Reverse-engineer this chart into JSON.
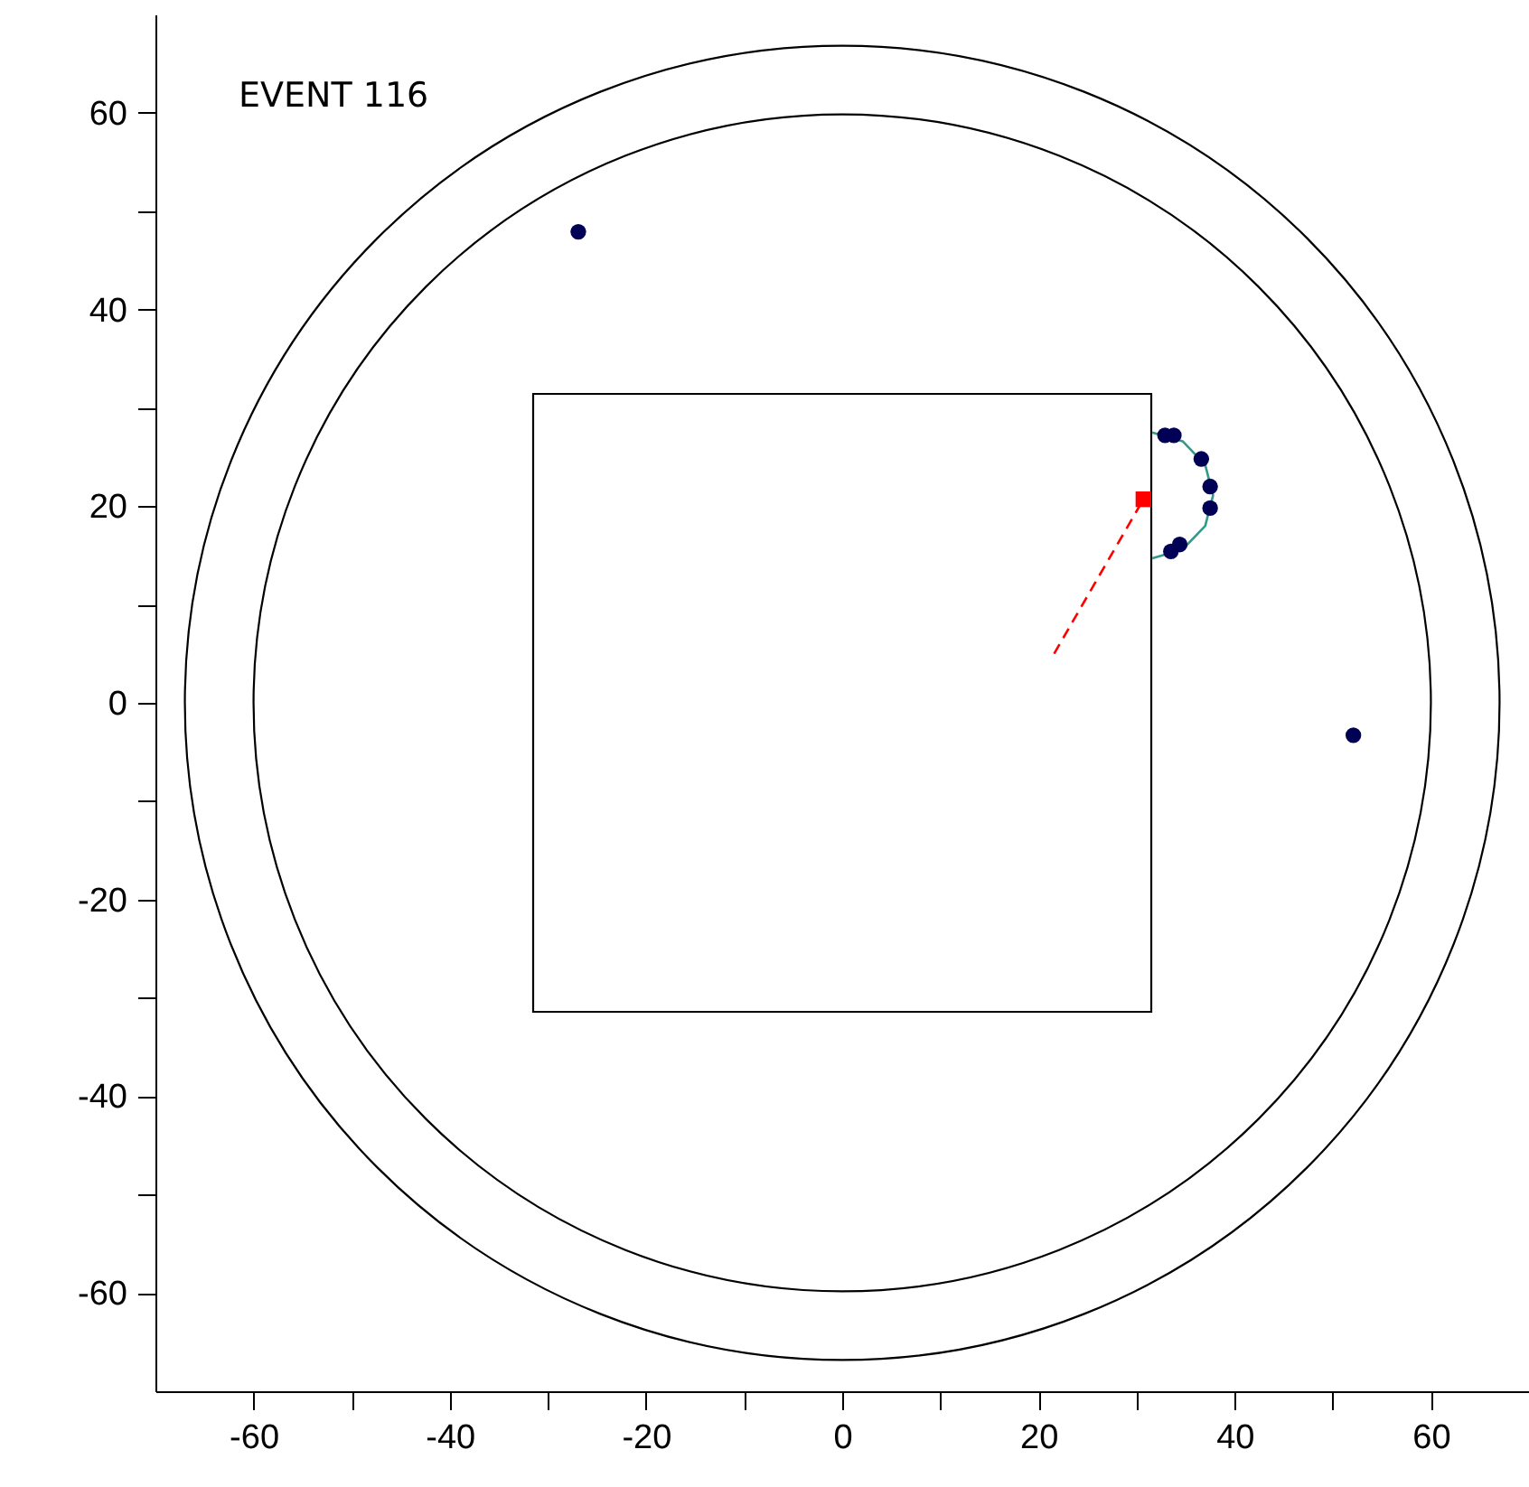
{
  "chart_data": {
    "type": "scatter",
    "annotations": [
      "EVENT 116"
    ],
    "xlim": [
      -70,
      70
    ],
    "ylim": [
      -70,
      70
    ],
    "xticks": [
      -60,
      {
        "value": -50,
        "label": null
      },
      -40,
      {
        "value": -30,
        "label": null
      },
      -20,
      {
        "value": -10,
        "label": null
      },
      0,
      {
        "value": 10,
        "label": null
      },
      20,
      {
        "value": 30,
        "label": null
      },
      40,
      {
        "value": 50,
        "label": null
      },
      60
    ],
    "yticks": [
      -60,
      {
        "value": -50,
        "label": null
      },
      -40,
      {
        "value": -30,
        "label": null
      },
      -20,
      {
        "value": -10,
        "label": null
      },
      0,
      {
        "value": 10,
        "label": null
      },
      20,
      {
        "value": 30,
        "label": null
      },
      40,
      {
        "value": 50,
        "label": null
      },
      60
    ],
    "series": [
      {
        "type": "line",
        "color": "#339988",
        "line_style": "solid",
        "x": [
          31.6,
          34.7,
          37.0,
          37.8,
          37.0,
          34.7,
          31.6
        ],
        "values": [
          27.5,
          26.6,
          24.2,
          21.1,
          18.0,
          15.6,
          14.7
        ]
      },
      {
        "type": "line",
        "color": "#ff0000",
        "line_style": "dashed",
        "x": [
          21.6,
          30.7
        ],
        "values": [
          5.0,
          20.7
        ]
      },
      {
        "type": "scatter",
        "color": "#000055",
        "marker": "circle",
        "x": [
          -26.9,
          52.1,
          32.9,
          33.8,
          36.6,
          37.5,
          37.5,
          34.4,
          33.5
        ],
        "values": [
          47.9,
          -3.3,
          27.2,
          27.2,
          24.8,
          22.0,
          19.8,
          16.1,
          15.4
        ]
      },
      {
        "type": "scatter",
        "color": "#ff0000",
        "marker": "square",
        "x": [
          30.7
        ],
        "values": [
          20.7
        ]
      }
    ]
  }
}
